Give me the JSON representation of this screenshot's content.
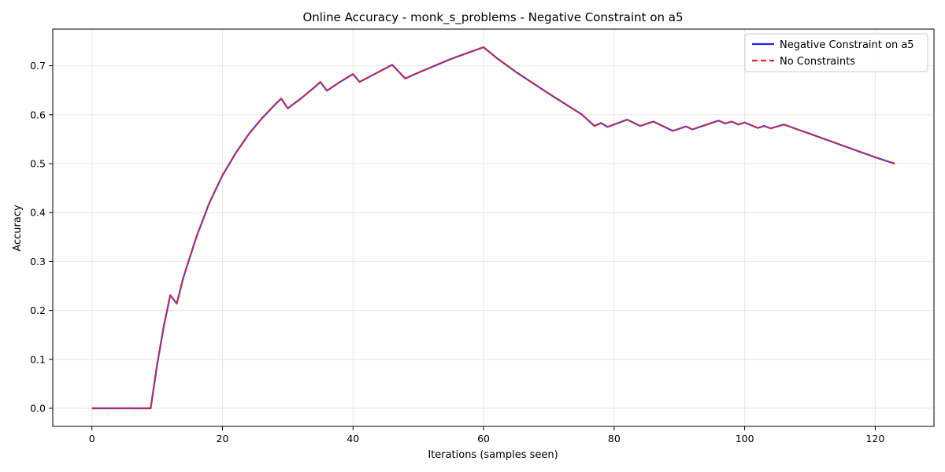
{
  "chart_data": {
    "type": "line",
    "title": "Online Accuracy - monk_s_problems - Negative Constraint on a5",
    "xlabel": "Iterations (samples seen)",
    "ylabel": "Accuracy",
    "xlim": [
      -6,
      129
    ],
    "ylim": [
      -0.037,
      0.775
    ],
    "xticks": [
      0,
      20,
      40,
      60,
      80,
      100,
      120
    ],
    "xtick_labels": [
      "0",
      "20",
      "40",
      "60",
      "80",
      "100",
      "120"
    ],
    "yticks": [
      0.0,
      0.1,
      0.2,
      0.3,
      0.4,
      0.5,
      0.6,
      0.7
    ],
    "ytick_labels": [
      "0.0",
      "0.1",
      "0.2",
      "0.3",
      "0.4",
      "0.5",
      "0.6",
      "0.7"
    ],
    "grid": true,
    "legend_position": "top-right",
    "x": [
      0,
      9,
      10,
      11,
      12,
      13,
      14,
      16,
      18,
      20,
      22,
      24,
      26,
      28,
      29,
      30,
      32,
      34,
      35,
      36,
      38,
      40,
      41,
      43,
      46,
      48,
      50,
      55,
      60,
      62,
      65,
      70,
      75,
      77,
      78,
      79,
      82,
      84,
      86,
      89,
      91,
      92,
      96,
      97,
      98,
      99,
      100,
      102,
      103,
      104,
      106,
      110,
      115,
      120,
      123
    ],
    "series": [
      {
        "name": "Negative Constraint on a5",
        "color": "#2222dd",
        "style": "solid",
        "values": [
          0.0,
          0.0,
          0.09,
          0.167,
          0.231,
          0.214,
          0.267,
          0.35,
          0.42,
          0.476,
          0.521,
          0.56,
          0.592,
          0.62,
          0.633,
          0.613,
          0.633,
          0.655,
          0.667,
          0.649,
          0.667,
          0.683,
          0.667,
          0.681,
          0.702,
          0.674,
          0.686,
          0.714,
          0.738,
          0.716,
          0.687,
          0.643,
          0.601,
          0.577,
          0.583,
          0.575,
          0.59,
          0.577,
          0.586,
          0.567,
          0.576,
          0.57,
          0.588,
          0.582,
          0.586,
          0.58,
          0.584,
          0.573,
          0.577,
          0.572,
          0.58,
          0.561,
          0.537,
          0.513,
          0.5
        ]
      },
      {
        "name": "No Constraints",
        "color": "#ee2222",
        "style": "dashed",
        "values": [
          0.0,
          0.0,
          0.09,
          0.167,
          0.231,
          0.214,
          0.267,
          0.35,
          0.42,
          0.476,
          0.521,
          0.56,
          0.592,
          0.62,
          0.633,
          0.613,
          0.633,
          0.655,
          0.667,
          0.649,
          0.667,
          0.683,
          0.667,
          0.681,
          0.702,
          0.674,
          0.686,
          0.714,
          0.738,
          0.716,
          0.687,
          0.643,
          0.601,
          0.577,
          0.583,
          0.575,
          0.59,
          0.577,
          0.586,
          0.567,
          0.576,
          0.57,
          0.588,
          0.582,
          0.586,
          0.58,
          0.584,
          0.573,
          0.577,
          0.572,
          0.58,
          0.561,
          0.537,
          0.513,
          0.5
        ]
      }
    ]
  }
}
